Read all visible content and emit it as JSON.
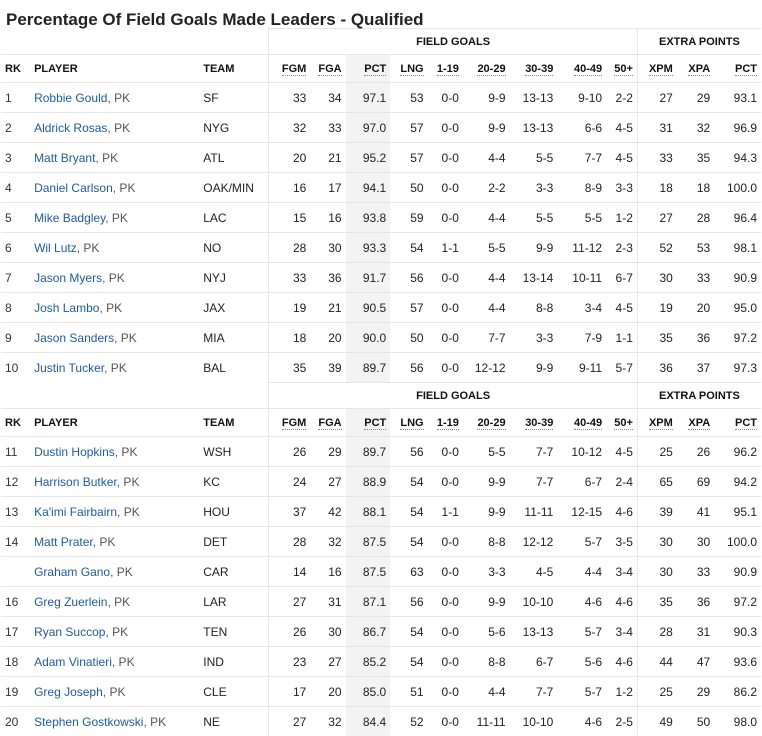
{
  "page": {
    "title": "Percentage Of Field Goals Made Leaders - Qualified"
  },
  "groups": {
    "field_goals": "FIELD GOALS",
    "extra_points": "EXTRA POINTS"
  },
  "columns": {
    "rk": "RK",
    "player": "PLAYER",
    "team": "TEAM",
    "fgm": "FGM",
    "fga": "FGA",
    "pct": "PCT",
    "lng": "LNG",
    "r1_19": "1-19",
    "r20_29": "20-29",
    "r30_39": "30-39",
    "r40_49": "40-49",
    "r50": "50+",
    "xpm": "XPM",
    "xpa": "XPA",
    "xpct": "PCT"
  },
  "tables": [
    {
      "rows": [
        {
          "rk": "1",
          "name": "Robbie Gould",
          "pos": ", PK",
          "team": "SF",
          "fgm": "33",
          "fga": "34",
          "pct": "97.1",
          "lng": "53",
          "a": "0-0",
          "b": "9-9",
          "c": "13-13",
          "d": "9-10",
          "e": "2-2",
          "xpm": "27",
          "xpa": "29",
          "xpct": "93.1"
        },
        {
          "rk": "2",
          "name": "Aldrick Rosas",
          "pos": ", PK",
          "team": "NYG",
          "fgm": "32",
          "fga": "33",
          "pct": "97.0",
          "lng": "57",
          "a": "0-0",
          "b": "9-9",
          "c": "13-13",
          "d": "6-6",
          "e": "4-5",
          "xpm": "31",
          "xpa": "32",
          "xpct": "96.9"
        },
        {
          "rk": "3",
          "name": "Matt Bryant",
          "pos": ", PK",
          "team": "ATL",
          "fgm": "20",
          "fga": "21",
          "pct": "95.2",
          "lng": "57",
          "a": "0-0",
          "b": "4-4",
          "c": "5-5",
          "d": "7-7",
          "e": "4-5",
          "xpm": "33",
          "xpa": "35",
          "xpct": "94.3"
        },
        {
          "rk": "4",
          "name": "Daniel Carlson",
          "pos": ", PK",
          "team": "OAK/MIN",
          "fgm": "16",
          "fga": "17",
          "pct": "94.1",
          "lng": "50",
          "a": "0-0",
          "b": "2-2",
          "c": "3-3",
          "d": "8-9",
          "e": "3-3",
          "xpm": "18",
          "xpa": "18",
          "xpct": "100.0"
        },
        {
          "rk": "5",
          "name": "Mike Badgley",
          "pos": ", PK",
          "team": "LAC",
          "fgm": "15",
          "fga": "16",
          "pct": "93.8",
          "lng": "59",
          "a": "0-0",
          "b": "4-4",
          "c": "5-5",
          "d": "5-5",
          "e": "1-2",
          "xpm": "27",
          "xpa": "28",
          "xpct": "96.4"
        },
        {
          "rk": "6",
          "name": "Wil Lutz",
          "pos": ", PK",
          "team": "NO",
          "fgm": "28",
          "fga": "30",
          "pct": "93.3",
          "lng": "54",
          "a": "1-1",
          "b": "5-5",
          "c": "9-9",
          "d": "11-12",
          "e": "2-3",
          "xpm": "52",
          "xpa": "53",
          "xpct": "98.1"
        },
        {
          "rk": "7",
          "name": "Jason Myers",
          "pos": ", PK",
          "team": "NYJ",
          "fgm": "33",
          "fga": "36",
          "pct": "91.7",
          "lng": "56",
          "a": "0-0",
          "b": "4-4",
          "c": "13-14",
          "d": "10-11",
          "e": "6-7",
          "xpm": "30",
          "xpa": "33",
          "xpct": "90.9"
        },
        {
          "rk": "8",
          "name": "Josh Lambo",
          "pos": ", PK",
          "team": "JAX",
          "fgm": "19",
          "fga": "21",
          "pct": "90.5",
          "lng": "57",
          "a": "0-0",
          "b": "4-4",
          "c": "8-8",
          "d": "3-4",
          "e": "4-5",
          "xpm": "19",
          "xpa": "20",
          "xpct": "95.0"
        },
        {
          "rk": "9",
          "name": "Jason Sanders",
          "pos": ", PK",
          "team": "MIA",
          "fgm": "18",
          "fga": "20",
          "pct": "90.0",
          "lng": "50",
          "a": "0-0",
          "b": "7-7",
          "c": "3-3",
          "d": "7-9",
          "e": "1-1",
          "xpm": "35",
          "xpa": "36",
          "xpct": "97.2"
        },
        {
          "rk": "10",
          "name": "Justin Tucker",
          "pos": ", PK",
          "team": "BAL",
          "fgm": "35",
          "fga": "39",
          "pct": "89.7",
          "lng": "56",
          "a": "0-0",
          "b": "12-12",
          "c": "9-9",
          "d": "9-11",
          "e": "5-7",
          "xpm": "36",
          "xpa": "37",
          "xpct": "97.3"
        }
      ]
    },
    {
      "rows": [
        {
          "rk": "11",
          "name": "Dustin Hopkins",
          "pos": ", PK",
          "team": "WSH",
          "fgm": "26",
          "fga": "29",
          "pct": "89.7",
          "lng": "56",
          "a": "0-0",
          "b": "5-5",
          "c": "7-7",
          "d": "10-12",
          "e": "4-5",
          "xpm": "25",
          "xpa": "26",
          "xpct": "96.2"
        },
        {
          "rk": "12",
          "name": "Harrison Butker",
          "pos": ", PK",
          "team": "KC",
          "fgm": "24",
          "fga": "27",
          "pct": "88.9",
          "lng": "54",
          "a": "0-0",
          "b": "9-9",
          "c": "7-7",
          "d": "6-7",
          "e": "2-4",
          "xpm": "65",
          "xpa": "69",
          "xpct": "94.2"
        },
        {
          "rk": "13",
          "name": "Ka'imi Fairbairn",
          "pos": ", PK",
          "team": "HOU",
          "fgm": "37",
          "fga": "42",
          "pct": "88.1",
          "lng": "54",
          "a": "1-1",
          "b": "9-9",
          "c": "11-11",
          "d": "12-15",
          "e": "4-6",
          "xpm": "39",
          "xpa": "41",
          "xpct": "95.1"
        },
        {
          "rk": "14",
          "name": "Matt Prater",
          "pos": ", PK",
          "team": "DET",
          "fgm": "28",
          "fga": "32",
          "pct": "87.5",
          "lng": "54",
          "a": "0-0",
          "b": "8-8",
          "c": "12-12",
          "d": "5-7",
          "e": "3-5",
          "xpm": "30",
          "xpa": "30",
          "xpct": "100.0"
        },
        {
          "rk": "",
          "name": "Graham Gano",
          "pos": ", PK",
          "team": "CAR",
          "fgm": "14",
          "fga": "16",
          "pct": "87.5",
          "lng": "63",
          "a": "0-0",
          "b": "3-3",
          "c": "4-5",
          "d": "4-4",
          "e": "3-4",
          "xpm": "30",
          "xpa": "33",
          "xpct": "90.9"
        },
        {
          "rk": "16",
          "name": "Greg Zuerlein",
          "pos": ", PK",
          "team": "LAR",
          "fgm": "27",
          "fga": "31",
          "pct": "87.1",
          "lng": "56",
          "a": "0-0",
          "b": "9-9",
          "c": "10-10",
          "d": "4-6",
          "e": "4-6",
          "xpm": "35",
          "xpa": "36",
          "xpct": "97.2"
        },
        {
          "rk": "17",
          "name": "Ryan Succop",
          "pos": ", PK",
          "team": "TEN",
          "fgm": "26",
          "fga": "30",
          "pct": "86.7",
          "lng": "54",
          "a": "0-0",
          "b": "5-6",
          "c": "13-13",
          "d": "5-7",
          "e": "3-4",
          "xpm": "28",
          "xpa": "31",
          "xpct": "90.3"
        },
        {
          "rk": "18",
          "name": "Adam Vinatieri",
          "pos": ", PK",
          "team": "IND",
          "fgm": "23",
          "fga": "27",
          "pct": "85.2",
          "lng": "54",
          "a": "0-0",
          "b": "8-8",
          "c": "6-7",
          "d": "5-6",
          "e": "4-6",
          "xpm": "44",
          "xpa": "47",
          "xpct": "93.6"
        },
        {
          "rk": "19",
          "name": "Greg Joseph",
          "pos": ", PK",
          "team": "CLE",
          "fgm": "17",
          "fga": "20",
          "pct": "85.0",
          "lng": "51",
          "a": "0-0",
          "b": "4-4",
          "c": "7-7",
          "d": "5-7",
          "e": "1-2",
          "xpm": "25",
          "xpa": "29",
          "xpct": "86.2"
        },
        {
          "rk": "20",
          "name": "Stephen Gostkowski",
          "pos": ", PK",
          "team": "NE",
          "fgm": "27",
          "fga": "32",
          "pct": "84.4",
          "lng": "52",
          "a": "0-0",
          "b": "11-11",
          "c": "10-10",
          "d": "4-6",
          "e": "2-5",
          "xpm": "49",
          "xpa": "50",
          "xpct": "98.0"
        }
      ]
    }
  ]
}
